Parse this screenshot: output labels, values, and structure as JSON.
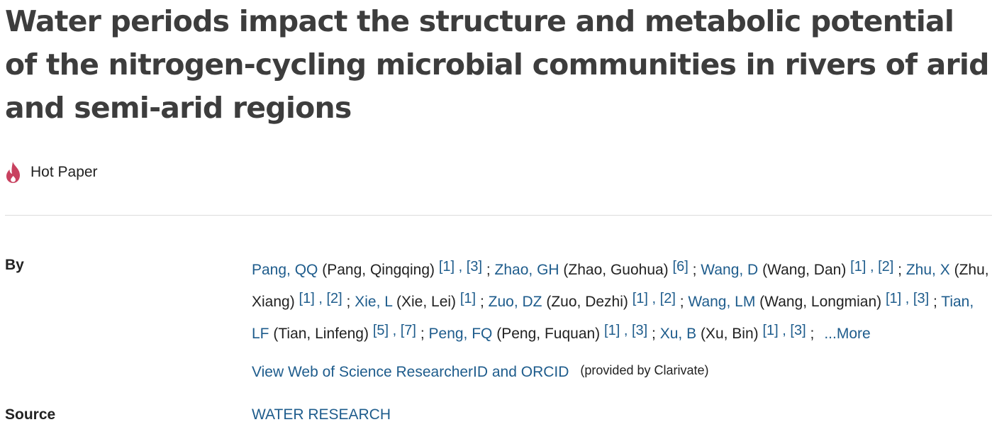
{
  "title": "Water periods impact the structure and metabolic potential of the nitrogen-cycling microbial communities in rivers of arid and semi-arid regions",
  "badge": {
    "icon": "flame-icon",
    "label": "Hot Paper",
    "color": "#c8415f"
  },
  "labels": {
    "by": "By",
    "source": "Source"
  },
  "authors": [
    {
      "short": "Pang, QQ",
      "full": "(Pang, Qingqing)",
      "affs": [
        "[1]",
        "[3]"
      ]
    },
    {
      "short": "Zhao, GH",
      "full": "(Zhao, Guohua)",
      "affs": [
        "[6]"
      ]
    },
    {
      "short": "Wang, D",
      "full": "(Wang, Dan)",
      "affs": [
        "[1]",
        "[2]"
      ]
    },
    {
      "short": "Zhu, X",
      "full": "(Zhu, Xiang)",
      "affs": [
        "[1]",
        "[2]"
      ]
    },
    {
      "short": "Xie, L",
      "full": "(Xie, Lei)",
      "affs": [
        "[1]"
      ]
    },
    {
      "short": "Zuo, DZ",
      "full": "(Zuo, Dezhi)",
      "affs": [
        "[1]",
        "[2]"
      ]
    },
    {
      "short": "Wang, LM",
      "full": "(Wang, Longmian)",
      "affs": [
        "[1]",
        "[3]"
      ]
    },
    {
      "short": "Tian, LF",
      "full": "(Tian, Linfeng)",
      "affs": [
        "[5]",
        "[7]"
      ]
    },
    {
      "short": "Peng, FQ",
      "full": "(Peng, Fuquan)",
      "affs": [
        "[1]",
        "[3]"
      ]
    },
    {
      "short": "Xu, B",
      "full": "(Xu, Bin)",
      "affs": [
        "[1]",
        "[3]"
      ]
    }
  ],
  "more_label": "...More",
  "wos_link": "View Web of Science ResearcherID and ORCID",
  "provided_by": "(provided by Clarivate)",
  "source_value": "WATER RESEARCH",
  "colors": {
    "link": "#1e5c8c",
    "title": "#3d3d3d",
    "text": "#222222"
  }
}
